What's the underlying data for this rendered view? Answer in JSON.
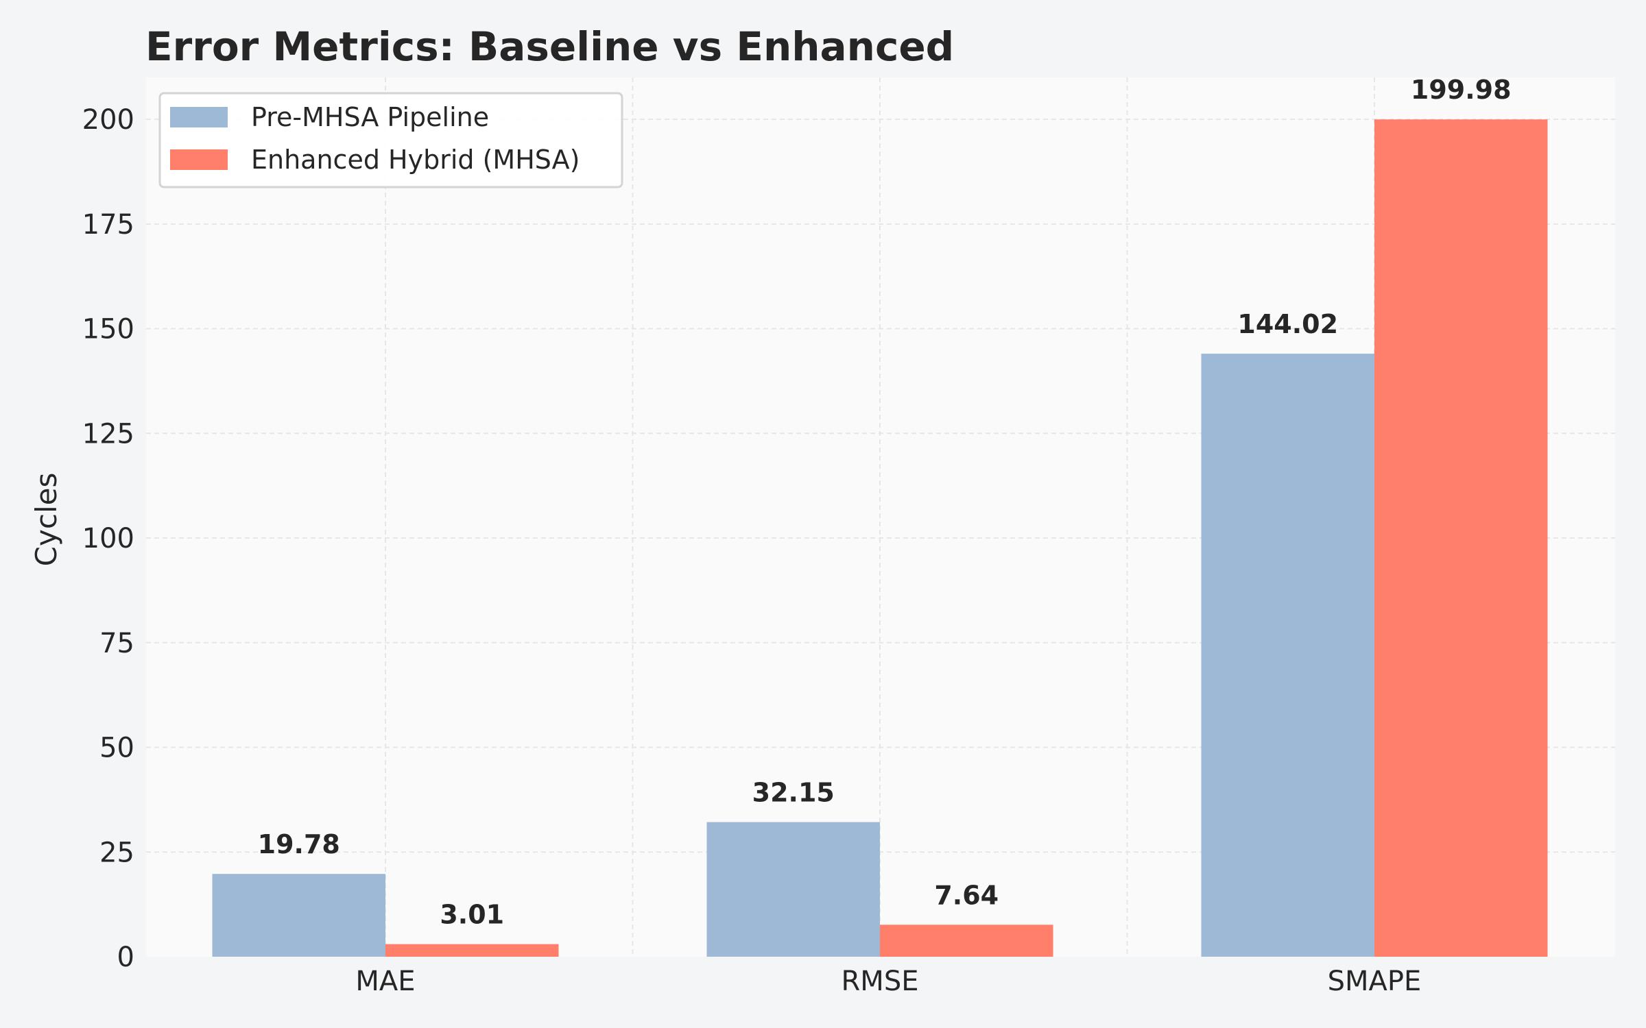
{
  "chart_data": {
    "type": "bar",
    "title": "Error Metrics: Baseline vs Enhanced",
    "xlabel": "",
    "ylabel": "Cycles",
    "categories": [
      "MAE",
      "RMSE",
      "SMAPE"
    ],
    "series": [
      {
        "name": "Pre-MHSA Pipeline",
        "values": [
          19.78,
          32.15,
          144.02
        ],
        "color": "#9db9d5",
        "labels": [
          "19.78",
          "32.15",
          "144.02"
        ]
      },
      {
        "name": "Enhanced Hybrid (MHSA)",
        "values": [
          3.01,
          7.64,
          199.98
        ],
        "color": "#ff7f6b",
        "labels": [
          "3.01",
          "7.64",
          "199.98"
        ]
      }
    ],
    "ylim": [
      0,
      210
    ],
    "yticks": [
      "0",
      "25",
      "50",
      "75",
      "100",
      "125",
      "150",
      "175",
      "200"
    ],
    "grid": true,
    "legend_position": "top-left",
    "colors": {
      "page_background": "#f4f5f7",
      "plot_background": "#fafafa",
      "grid": "#e6e6e6",
      "text": "#262626"
    }
  }
}
